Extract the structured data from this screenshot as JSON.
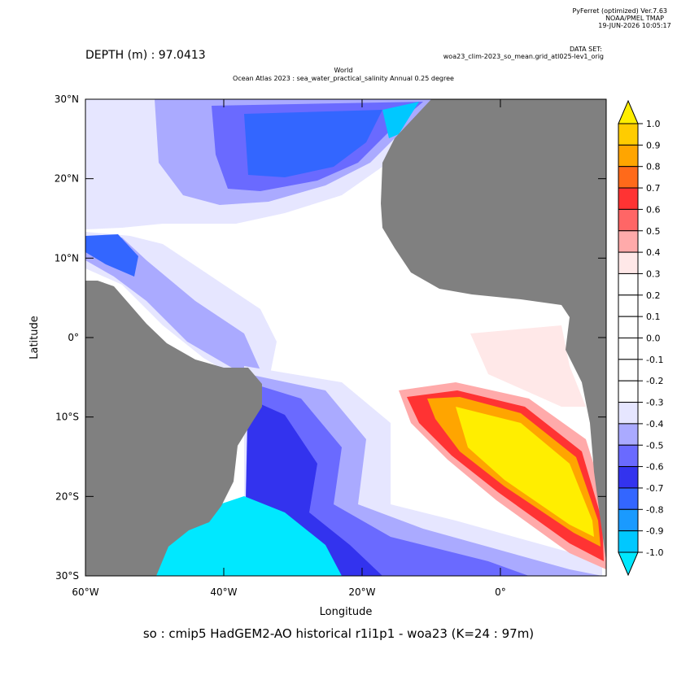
{
  "header": {
    "software": "PyFerret (optimized) Ver.7.63",
    "org": "NOAA/PMEL TMAP",
    "timestamp": "19-JUN-2026 10:05:17",
    "dataset_label": "DATA SET:",
    "dataset": "woa23_clim-2023_so_mean.grid_atl025-lev1_orig"
  },
  "depth_label": "DEPTH (m) : 97.0413",
  "title_line1": "World",
  "title_line2": "Ocean Atlas 2023 : sea_water_practical_salinity Annual  0.25 degree",
  "map": {
    "xlabel": "Longitude",
    "ylabel": "Latitude",
    "xlim": [
      -60,
      15.3
    ],
    "ylim": [
      -30,
      30
    ],
    "xticks": [
      {
        "value": -60,
        "label": "60°W"
      },
      {
        "value": -40,
        "label": "40°W"
      },
      {
        "value": -20,
        "label": "20°W"
      },
      {
        "value": 0,
        "label": "0°"
      }
    ],
    "yticks": [
      {
        "value": 30,
        "label": "30°N"
      },
      {
        "value": 20,
        "label": "20°N"
      },
      {
        "value": 10,
        "label": "10°N"
      },
      {
        "value": 0,
        "label": "0°"
      },
      {
        "value": -10,
        "label": "10°S"
      },
      {
        "value": -20,
        "label": "20°S"
      },
      {
        "value": -30,
        "label": "30°S"
      }
    ]
  },
  "colorbar": {
    "levels": [
      1.0,
      0.9,
      0.8,
      0.7,
      0.6,
      0.5,
      0.4,
      0.3,
      0.2,
      0.1,
      0.0,
      -0.1,
      -0.2,
      -0.3,
      -0.4,
      -0.5,
      -0.6,
      -0.7,
      -0.8,
      -0.9,
      -1.0
    ],
    "level_labels": [
      "1.0",
      "0.9",
      "0.8",
      "0.7",
      "0.6",
      "0.5",
      "0.4",
      "0.3",
      "0.2",
      "0.1",
      "0.0",
      "-0.1",
      "-0.2",
      "-0.3",
      "-0.4",
      "-0.5",
      "-0.6",
      "-0.7",
      "-0.8",
      "-0.9",
      "-1.0"
    ],
    "colors": [
      "#ffee00",
      "#ffcc00",
      "#ffa500",
      "#ff6a1a",
      "#ff3333",
      "#ff6666",
      "#ffaaaa",
      "#ffe8e8",
      "#ffffff",
      "#ffffff",
      "#ffffff",
      "#ffffff",
      "#ffffff",
      "#ffffff",
      "#e6e6ff",
      "#aaaaff",
      "#6a6aff",
      "#3333ee",
      "#3366ff",
      "#1a9aff",
      "#00c8ff",
      "#00e8ff"
    ]
  },
  "caption": "so : cmip5 HadGEM2-AO historical r1i1p1 - woa23  (K=24 : 97m)"
}
